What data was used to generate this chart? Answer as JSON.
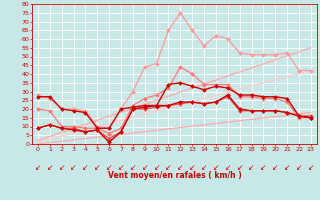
{
  "background_color": "#c8e8e8",
  "grid_color": "#ffffff",
  "xlabel": "Vent moyen/en rafales ( km/h )",
  "xlabel_color": "#cc0000",
  "tick_color": "#cc0000",
  "xlim": [
    -0.5,
    23.5
  ],
  "ylim": [
    0,
    80
  ],
  "ytick_vals": [
    0,
    5,
    10,
    15,
    20,
    25,
    30,
    35,
    40,
    45,
    50,
    55,
    60,
    65,
    70,
    75,
    80
  ],
  "xtick_vals": [
    0,
    1,
    2,
    3,
    4,
    5,
    6,
    7,
    8,
    9,
    10,
    11,
    12,
    13,
    14,
    15,
    16,
    17,
    18,
    19,
    20,
    21,
    22,
    23
  ],
  "lines": [
    {
      "x": [
        0,
        23
      ],
      "y": [
        2,
        55
      ],
      "color": "#ffaaaa",
      "marker": null,
      "markersize": 0,
      "linewidth": 0.9,
      "zorder": 2
    },
    {
      "x": [
        0,
        23
      ],
      "y": [
        1,
        42
      ],
      "color": "#ffcccc",
      "marker": null,
      "markersize": 0,
      "linewidth": 0.9,
      "zorder": 2
    },
    {
      "x": [
        0,
        23
      ],
      "y": [
        0,
        18
      ],
      "color": "#ffaaaa",
      "marker": null,
      "markersize": 0,
      "linewidth": 0.9,
      "zorder": 2
    },
    {
      "x": [
        0,
        1,
        2,
        3,
        4,
        5,
        6,
        7,
        8,
        9,
        10,
        11,
        12,
        13,
        14,
        15,
        16,
        17,
        18,
        19,
        20,
        21,
        22,
        23
      ],
      "y": [
        28,
        26,
        20,
        20,
        19,
        10,
        9,
        20,
        30,
        44,
        46,
        65,
        75,
        65,
        56,
        62,
        60,
        52,
        51,
        51,
        51,
        52,
        42,
        42
      ],
      "color": "#ff9999",
      "marker": "D",
      "markersize": 2,
      "linewidth": 0.9,
      "zorder": 3
    },
    {
      "x": [
        0,
        1,
        2,
        3,
        4,
        5,
        6,
        7,
        8,
        9,
        10,
        11,
        12,
        13,
        14,
        15,
        16,
        17,
        18,
        19,
        20,
        21,
        22,
        23
      ],
      "y": [
        20,
        19,
        10,
        10,
        9,
        9,
        6,
        9,
        22,
        26,
        28,
        32,
        44,
        40,
        34,
        34,
        34,
        27,
        27,
        26,
        26,
        24,
        15,
        15
      ],
      "color": "#ff7777",
      "marker": "D",
      "markersize": 2,
      "linewidth": 0.9,
      "zorder": 3
    },
    {
      "x": [
        0,
        1,
        2,
        3,
        4,
        5,
        6,
        7,
        8,
        9,
        10,
        11,
        12,
        13,
        14,
        15,
        16,
        17,
        18,
        19,
        20,
        21,
        22,
        23
      ],
      "y": [
        9,
        11,
        9,
        8,
        7,
        8,
        1,
        7,
        20,
        21,
        22,
        22,
        24,
        24,
        23,
        24,
        28,
        20,
        19,
        19,
        19,
        18,
        16,
        15
      ],
      "color": "#cc0000",
      "marker": "D",
      "markersize": 2,
      "linewidth": 1.0,
      "zorder": 5
    },
    {
      "x": [
        0,
        1,
        2,
        3,
        4,
        5,
        6,
        7,
        8,
        9,
        10,
        11,
        12,
        13,
        14,
        15,
        16,
        17,
        18,
        19,
        20,
        21,
        22,
        23
      ],
      "y": [
        27,
        27,
        20,
        19,
        18,
        9,
        9,
        20,
        21,
        22,
        22,
        34,
        35,
        33,
        31,
        33,
        32,
        28,
        28,
        27,
        27,
        26,
        16,
        15
      ],
      "color": "#cc0000",
      "marker": "D",
      "markersize": 2,
      "linewidth": 1.0,
      "zorder": 5
    },
    {
      "x": [
        0,
        1,
        2,
        3,
        4,
        5,
        6,
        7,
        8,
        9,
        10,
        11,
        12,
        13,
        14,
        15,
        16,
        17,
        18,
        19,
        20,
        21,
        22,
        23
      ],
      "y": [
        9,
        11,
        9,
        9,
        7,
        8,
        3,
        7,
        20,
        20,
        21,
        22,
        23,
        24,
        23,
        24,
        27,
        19,
        19,
        19,
        19,
        18,
        16,
        16
      ],
      "color": "#ee4444",
      "marker": "D",
      "markersize": 2,
      "linewidth": 0.9,
      "zorder": 4
    }
  ],
  "wind_arrow_color": "#cc0000",
  "wind_arrow_fontsize": 5.5
}
